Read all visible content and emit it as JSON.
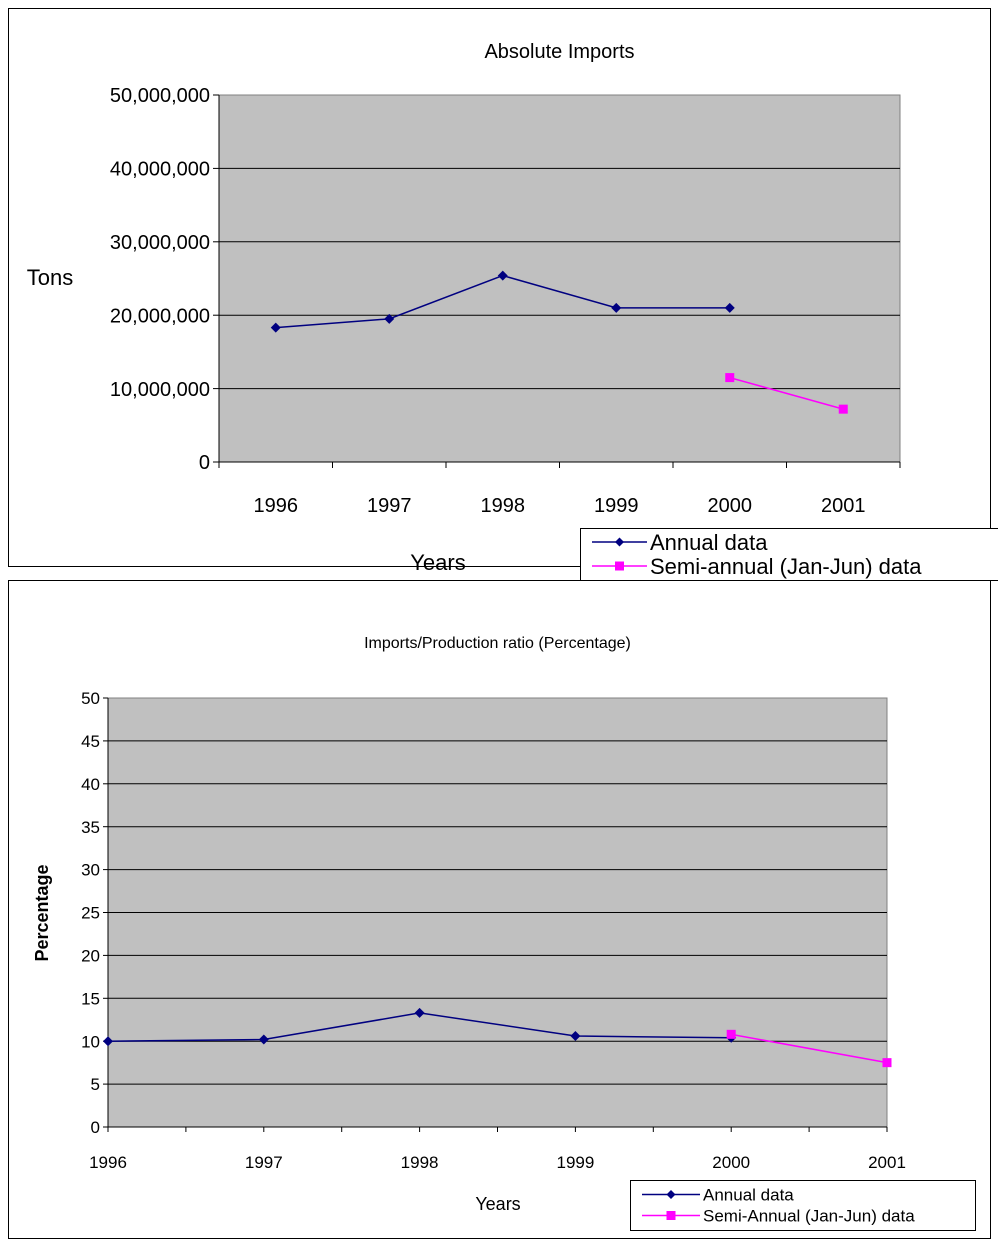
{
  "chart_data": [
    {
      "type": "line",
      "title": "Absolute Imports",
      "xlabel": "Years",
      "ylabel": "Tons",
      "categories": [
        "1996",
        "1997",
        "1998",
        "1999",
        "2000",
        "2001"
      ],
      "yticks": [
        "0",
        "10,000,000",
        "20,000,000",
        "30,000,000",
        "40,000,000",
        "50,000,000"
      ],
      "ylim": [
        0,
        50000000
      ],
      "grid": true,
      "legend_position": "bottom-right",
      "series": [
        {
          "name": "Annual data",
          "color": "#000080",
          "marker": "diamond",
          "values": [
            18300000,
            19500000,
            25400000,
            21000000,
            21000000,
            null
          ]
        },
        {
          "name": "Semi-annual (Jan-Jun) data",
          "color": "#ff00ff",
          "marker": "square",
          "values": [
            null,
            null,
            null,
            null,
            11500000,
            7200000
          ]
        }
      ]
    },
    {
      "type": "line",
      "title": "Imports/Production ratio (Percentage)",
      "xlabel": "Years",
      "ylabel": "Percentage",
      "categories": [
        "1996",
        "1997",
        "1998",
        "1999",
        "2000",
        "2001"
      ],
      "yticks": [
        "0",
        "5",
        "10",
        "15",
        "20",
        "25",
        "30",
        "35",
        "40",
        "45",
        "50"
      ],
      "ylim": [
        0,
        50
      ],
      "grid": true,
      "legend_position": "bottom-right",
      "series": [
        {
          "name": "Annual data",
          "color": "#000080",
          "marker": "diamond",
          "values": [
            10.0,
            10.2,
            13.3,
            10.6,
            10.4,
            null
          ]
        },
        {
          "name": "Semi-Annual (Jan-Jun) data",
          "color": "#ff00ff",
          "marker": "square",
          "values": [
            null,
            null,
            null,
            null,
            10.8,
            7.5
          ]
        }
      ]
    }
  ]
}
